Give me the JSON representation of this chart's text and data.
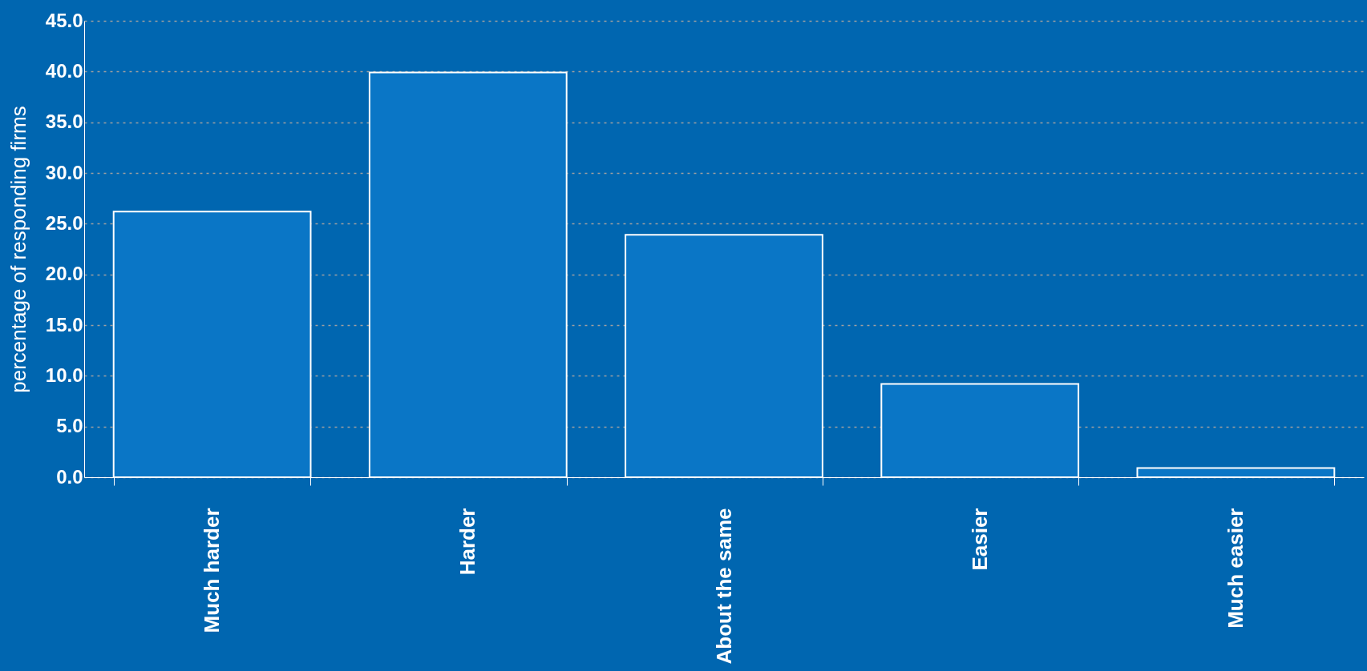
{
  "chart_data": {
    "type": "bar",
    "ylabel": "percentage of responding firms",
    "categories": [
      "Much harder",
      "Harder",
      "About the same",
      "Easier",
      "Much easier"
    ],
    "values": [
      26.2,
      39.9,
      23.9,
      9.2,
      0.9
    ],
    "color": "#0a76c6",
    "ylim": [
      0,
      45
    ],
    "yticks": [
      {
        "value": 0,
        "label": "0.0"
      },
      {
        "value": 5,
        "label": "5.0"
      },
      {
        "value": 10,
        "label": "10.0"
      },
      {
        "value": 15,
        "label": "15.0"
      },
      {
        "value": 20,
        "label": "20.0"
      },
      {
        "value": 25,
        "label": "25.0"
      },
      {
        "value": 30,
        "label": "30.0"
      },
      {
        "value": 35,
        "label": "35.0"
      },
      {
        "value": 40,
        "label": "40.0"
      },
      {
        "value": 45,
        "label": "45.0"
      }
    ],
    "grid": "y"
  }
}
